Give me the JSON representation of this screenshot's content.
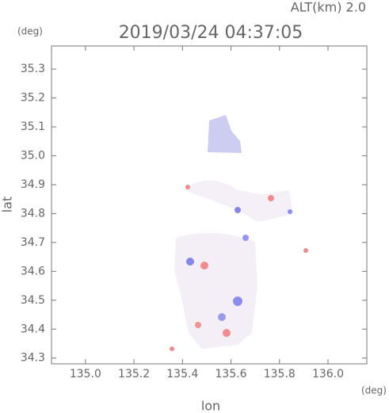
{
  "chart_data": {
    "type": "field",
    "title": "2019/03/24 04:37:05",
    "altitude_label": "ALT(km) 2.0",
    "xlabel": "lon",
    "ylabel": "lat",
    "x_unit": "(deg)",
    "y_unit": "(deg)",
    "xlim": [
      134.86,
      136.16
    ],
    "ylim": [
      34.28,
      35.38
    ],
    "xticks": [
      {
        "value": 135,
        "label": "135.0"
      },
      135.2,
      135.4,
      135.6,
      135.8,
      {
        "value": 136,
        "label": "136.0"
      }
    ],
    "yticks": [
      34.3,
      34.4,
      34.5,
      34.6,
      34.7,
      34.8,
      34.9,
      {
        "value": 35,
        "label": "35.0"
      },
      35.1,
      35.2,
      35.3
    ]
  }
}
